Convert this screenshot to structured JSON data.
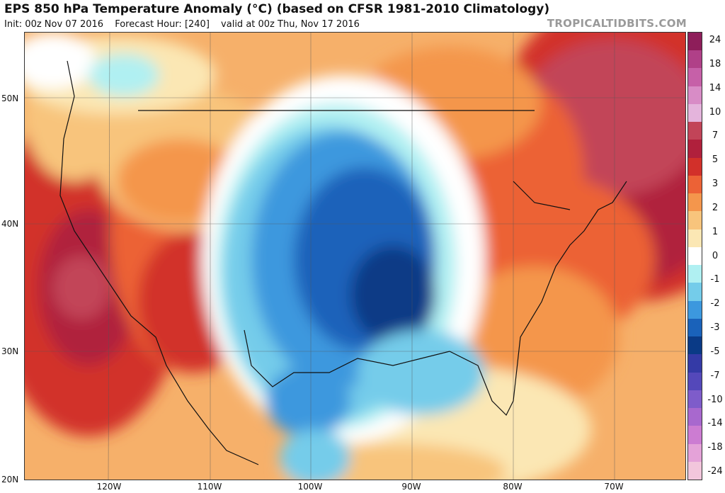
{
  "header": {
    "title": "EPS 850 hPa Temperature Anomaly (°C) (based on CFSR 1981-2010 Climatology)",
    "init": "Init: 00z Nov 07 2016",
    "forecast_hour": "Forecast Hour: [240]",
    "valid": "valid at 00z Thu, Nov 17 2016",
    "source": "TROPICALTIDBITS.COM"
  },
  "map": {
    "lat_labels": [
      "50N",
      "40N",
      "30N",
      "20N"
    ],
    "lon_labels": [
      "120W",
      "110W",
      "100W",
      "90W",
      "80W",
      "70W"
    ]
  },
  "colorbar": {
    "labels": [
      "24",
      "18",
      "14",
      "10",
      "7",
      "5",
      "3",
      "2",
      "1",
      "0",
      "-1",
      "-2",
      "-3",
      "-5",
      "-7",
      "-10",
      "-14",
      "-18",
      "-24"
    ],
    "colors": [
      "#8e1e5a",
      "#b04088",
      "#c660a8",
      "#d88cc6",
      "#e4b4dc",
      "#c24458",
      "#b0203c",
      "#d2302a",
      "#ec6236",
      "#f4964c",
      "#f8c47c",
      "#fbe7b4",
      "#ffffff",
      "#b0f0f2",
      "#74ccea",
      "#3c98de",
      "#1a62ba",
      "#0a3a86",
      "#343aa6",
      "#5448ba",
      "#7e5cca",
      "#a868ce",
      "#cc7cd2",
      "#e4a2d8",
      "#f2c6dc"
    ]
  },
  "colors": {
    "background": "#ffffff",
    "source_gray": "#9a9a9a",
    "warm_anomaly": "#d2302a",
    "cold_anomaly": "#1a62ba"
  }
}
